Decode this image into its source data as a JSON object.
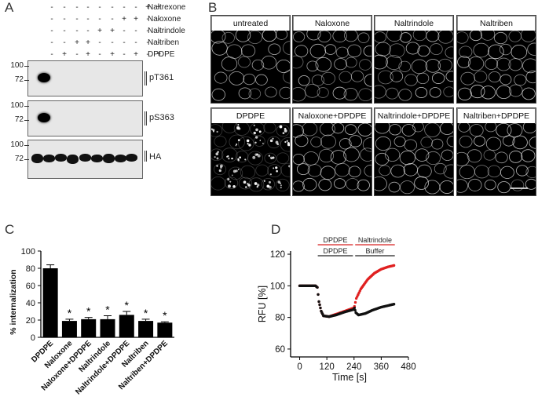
{
  "panel_a": {
    "letter": "A",
    "treatments": [
      "Naltrexone",
      "Naloxone",
      "Naltrindole",
      "Naltriben",
      "DPDPE"
    ],
    "sign_rows": [
      [
        "-",
        "-",
        "-",
        "-",
        "-",
        "-",
        "-",
        "-",
        "+",
        "+"
      ],
      [
        "-",
        "-",
        "-",
        "-",
        "-",
        "-",
        "+",
        "+",
        "-",
        "-"
      ],
      [
        "-",
        "-",
        "-",
        "-",
        "+",
        "+",
        "-",
        "-",
        "-",
        "-"
      ],
      [
        "-",
        "-",
        "+",
        "+",
        "-",
        "-",
        "-",
        "-",
        "-",
        "-"
      ],
      [
        "-",
        "+",
        "-",
        "+",
        "-",
        "+",
        "-",
        "+",
        "-",
        "+"
      ]
    ],
    "blots": [
      {
        "label": "pT361",
        "markers": [
          "100",
          "72"
        ]
      },
      {
        "label": "pS363",
        "markers": [
          "100",
          "72"
        ]
      },
      {
        "label": "HA",
        "markers": [
          "100",
          "72"
        ]
      }
    ]
  },
  "panel_b": {
    "letter": "B",
    "images": [
      {
        "label": "untreated"
      },
      {
        "label": "Naloxone"
      },
      {
        "label": "Naltrindole"
      },
      {
        "label": "Naltriben"
      },
      {
        "label": "DPDPE"
      },
      {
        "label": "Naloxone+DPDPE"
      },
      {
        "label": "Naltrindole+DPDPE"
      },
      {
        "label": "Naltriben+DPDPE"
      }
    ]
  },
  "panel_c": {
    "letter": "C",
    "chart_data": {
      "type": "bar",
      "ylabel": "% internalization",
      "ylim": [
        0,
        100
      ],
      "yticks": [
        "0",
        "20",
        "40",
        "60",
        "80",
        "100"
      ],
      "categories": [
        "DPDPE",
        "Naloxone",
        "Naloxone+DPDPE",
        "Naltrindole",
        "Naltrindole+DPDPE",
        "Naltriben",
        "Naltriben+DPDPE"
      ],
      "values": [
        80,
        19,
        21,
        21,
        26,
        19,
        17
      ],
      "errors": [
        4,
        2,
        2,
        4,
        4,
        2,
        1
      ],
      "significance": [
        "",
        "*",
        "*",
        "*",
        "*",
        "*",
        "*"
      ]
    }
  },
  "panel_d": {
    "letter": "D",
    "chart_data": {
      "type": "line",
      "xlabel": "Time [s]",
      "ylabel": "RFU [%]",
      "xlim": [
        -40,
        480
      ],
      "ylim": [
        55,
        122
      ],
      "xticks": [
        "0",
        "120",
        "240",
        "360",
        "480"
      ],
      "yticks": [
        "60",
        "80",
        "100",
        "120"
      ],
      "annotations": [
        {
          "text": "DPDPE",
          "color": "#d62020",
          "row": 1,
          "x0": 80,
          "x1": 235
        },
        {
          "text": "Naltrindole",
          "color": "#d62020",
          "row": 1,
          "x0": 245,
          "x1": 420
        },
        {
          "text": "DPDPE",
          "color": "#222222",
          "row": 2,
          "x0": 80,
          "x1": 235
        },
        {
          "text": "Buffer",
          "color": "#222222",
          "row": 2,
          "x0": 245,
          "x1": 420
        }
      ],
      "series": [
        {
          "color": "#e02020",
          "points": [
            [
              0,
              100
            ],
            [
              40,
              100
            ],
            [
              70,
              100
            ],
            [
              78,
              99
            ],
            [
              85,
              90
            ],
            [
              95,
              84
            ],
            [
              105,
              81
            ],
            [
              130,
              80.5
            ],
            [
              160,
              82
            ],
            [
              200,
              84
            ],
            [
              238,
              86
            ],
            [
              242,
              87
            ],
            [
              250,
              92
            ],
            [
              270,
              98
            ],
            [
              300,
              104
            ],
            [
              330,
              108
            ],
            [
              360,
              110.5
            ],
            [
              390,
              112
            ],
            [
              420,
              113
            ]
          ]
        },
        {
          "color": "#111111",
          "points": [
            [
              0,
              100
            ],
            [
              40,
              100
            ],
            [
              70,
              100
            ],
            [
              78,
              99
            ],
            [
              85,
              90
            ],
            [
              95,
              84
            ],
            [
              105,
              81
            ],
            [
              130,
              80.5
            ],
            [
              160,
              81.5
            ],
            [
              200,
              83.5
            ],
            [
              238,
              85
            ],
            [
              242,
              86
            ],
            [
              248,
              83
            ],
            [
              260,
              81.5
            ],
            [
              290,
              82.5
            ],
            [
              320,
              84.5
            ],
            [
              360,
              86.5
            ],
            [
              390,
              87.5
            ],
            [
              420,
              88.5
            ]
          ]
        }
      ]
    }
  }
}
